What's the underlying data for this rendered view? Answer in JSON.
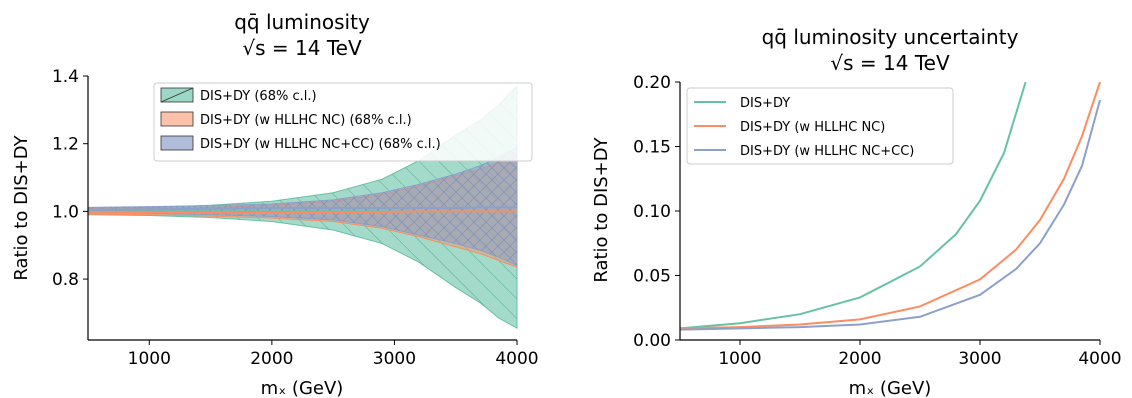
{
  "chart_data": [
    {
      "type": "area",
      "title_line1": "qq̄ luminosity",
      "title_line2": "√s = 14 TeV",
      "xlabel": "mₓ (GeV)",
      "ylabel": "Ratio to DIS+DY",
      "xlim": [
        500,
        4000
      ],
      "ylim": [
        0.62,
        1.4
      ],
      "xticks": [
        "1000",
        "2000",
        "3000",
        "4000"
      ],
      "yticks": [
        "0.8",
        "1.0",
        "1.2",
        "1.4"
      ],
      "xtick_values": [
        1000,
        2000,
        3000,
        4000
      ],
      "ytick_values": [
        0.8,
        1.0,
        1.2,
        1.4
      ],
      "legend_position": "top-right",
      "x": [
        500,
        1000,
        1500,
        2000,
        2500,
        2900,
        3200,
        3500,
        3700,
        3850,
        4000
      ],
      "series": [
        {
          "name": "DIS+DY (68% c.l.)",
          "color": "#66c2a5",
          "central": [
            1.0,
            1.0,
            1.0,
            1.0,
            1.0,
            1.0,
            1.0,
            1.0,
            1.0,
            1.0,
            1.0
          ],
          "upper": [
            1.01,
            1.012,
            1.018,
            1.03,
            1.055,
            1.095,
            1.15,
            1.225,
            1.27,
            1.315,
            1.37
          ],
          "lower": [
            0.99,
            0.988,
            0.982,
            0.97,
            0.945,
            0.905,
            0.85,
            0.775,
            0.73,
            0.685,
            0.655
          ]
        },
        {
          "name": "DIS+DY (w HLLHC NC) (68% c.l.)",
          "color": "#fc8d62",
          "central": [
            0.998,
            0.997,
            0.996,
            0.996,
            0.997,
            0.998,
            1.0,
            1.0,
            1.0,
            1.0,
            1.0
          ],
          "upper": [
            1.007,
            1.009,
            1.012,
            1.018,
            1.03,
            1.05,
            1.075,
            1.105,
            1.125,
            1.145,
            1.165
          ],
          "lower": [
            0.992,
            0.99,
            0.986,
            0.98,
            0.97,
            0.95,
            0.925,
            0.895,
            0.875,
            0.855,
            0.835
          ]
        },
        {
          "name": "DIS+DY (w HLLHC NC+CC) (68% c.l.)",
          "color": "#8da0cb",
          "central": [
            1.004,
            1.006,
            1.008,
            1.01,
            1.01,
            1.01,
            1.01,
            1.01,
            1.012,
            1.012,
            1.012
          ],
          "upper": [
            1.012,
            1.014,
            1.017,
            1.022,
            1.034,
            1.055,
            1.08,
            1.11,
            1.135,
            1.16,
            1.19
          ],
          "lower": [
            0.996,
            0.994,
            0.99,
            0.985,
            0.975,
            0.955,
            0.93,
            0.905,
            0.885,
            0.865,
            0.84
          ]
        }
      ]
    },
    {
      "type": "line",
      "title_line1": "qq̄ luminosity uncertainty",
      "title_line2": "√s = 14 TeV",
      "xlabel": "mₓ (GeV)",
      "ylabel": "Ratio to DIS+DY",
      "xlim": [
        500,
        4000
      ],
      "ylim": [
        0.0,
        0.2
      ],
      "xticks": [
        "1000",
        "2000",
        "3000",
        "4000"
      ],
      "yticks": [
        "0.00",
        "0.05",
        "0.10",
        "0.15",
        "0.20"
      ],
      "xtick_values": [
        1000,
        2000,
        3000,
        4000
      ],
      "ytick_values": [
        0.0,
        0.05,
        0.1,
        0.15,
        0.2
      ],
      "legend_position": "top-left",
      "series": [
        {
          "name": "DIS+DY",
          "color": "#66c2a5",
          "x": [
            500,
            1000,
            1500,
            2000,
            2500,
            2800,
            3000,
            3200,
            3380
          ],
          "y": [
            0.009,
            0.013,
            0.02,
            0.033,
            0.057,
            0.082,
            0.108,
            0.145,
            0.2
          ]
        },
        {
          "name": "DIS+DY (w HLLHC NC)",
          "color": "#fc8d62",
          "x": [
            500,
            1000,
            1500,
            2000,
            2500,
            3000,
            3300,
            3500,
            3700,
            3850,
            4000
          ],
          "y": [
            0.009,
            0.01,
            0.012,
            0.016,
            0.026,
            0.047,
            0.07,
            0.093,
            0.125,
            0.158,
            0.2
          ]
        },
        {
          "name": "DIS+DY (w HLLHC NC+CC)",
          "color": "#8da0cb",
          "x": [
            500,
            1000,
            1500,
            2000,
            2500,
            3000,
            3300,
            3500,
            3700,
            3850,
            4000
          ],
          "y": [
            0.008,
            0.009,
            0.01,
            0.012,
            0.018,
            0.035,
            0.055,
            0.075,
            0.105,
            0.135,
            0.186
          ]
        }
      ]
    }
  ]
}
